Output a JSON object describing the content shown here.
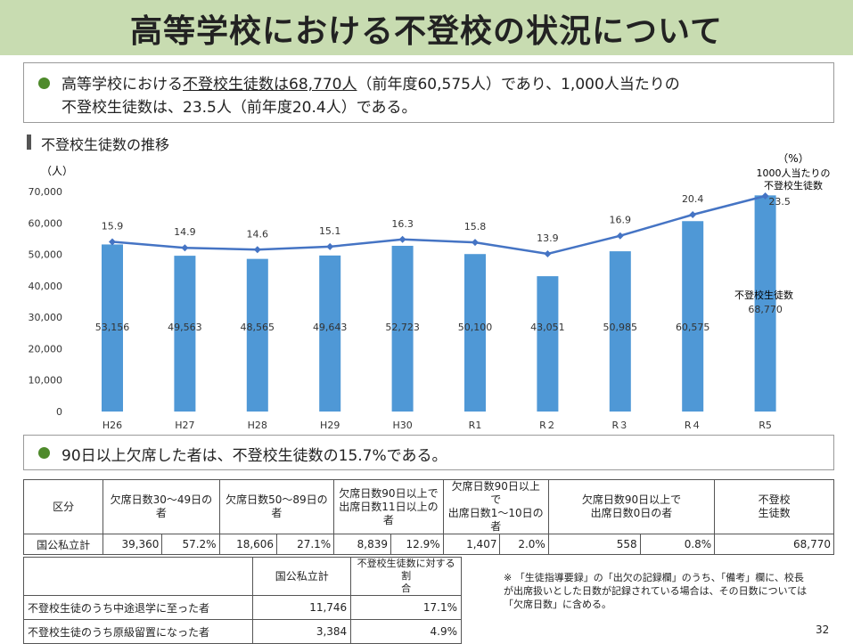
{
  "title": "高等学校における不登校の状況について",
  "summary1": {
    "line1_part1": "高等学校における",
    "line1_underlined": "不登校生徒数は68,770人",
    "line1_part2": "（前年度60,575人）であり、1,000人当たりの",
    "line2": "不登校生徒数は、23.5人（前年度20.4人）である。"
  },
  "section_title": "不登校生徒数の推移",
  "chart_data": {
    "type": "bar",
    "categories": [
      "H26",
      "H27",
      "H28",
      "H29",
      "H30",
      "R1",
      "R２",
      "R３",
      "R４",
      "R5"
    ],
    "series": [
      {
        "name": "不登校生徒数",
        "type": "bar",
        "axis": "left",
        "values": [
          53156,
          49563,
          48565,
          49643,
          52723,
          50100,
          43051,
          50985,
          60575,
          68770
        ],
        "labels": [
          "53,156",
          "49,563",
          "48,565",
          "49,643",
          "52,723",
          "50,100",
          "43,051",
          "50,985",
          "60,575",
          "68,770"
        ]
      },
      {
        "name": "1000人当たりの不登校生徒数",
        "type": "line",
        "axis": "right",
        "values": [
          15.9,
          14.9,
          14.6,
          15.1,
          16.3,
          15.8,
          13.9,
          16.9,
          20.4,
          23.5
        ],
        "labels": [
          "15.9",
          "14.9",
          "14.6",
          "15.1",
          "16.3",
          "15.8",
          "13.9",
          "16.9",
          "20.4",
          "23.5"
        ]
      }
    ],
    "ylabel_left": "（人）",
    "ylabel_right": "（%）",
    "ylim_left": [
      0,
      70000
    ],
    "yticks_left": [
      "0",
      "10,000",
      "20,000",
      "30,000",
      "40,000",
      "50,000",
      "60,000",
      "70,000"
    ],
    "line_annotation": [
      "1000人当たりの",
      "不登校生徒数"
    ],
    "bar_annotation": "不登校生徒数",
    "colors": {
      "bar": "#4f98d6",
      "line": "#4574c4"
    }
  },
  "summary2": "90日以上欠席した者は、不登校生徒数の15.7%である。",
  "table1": {
    "headers": [
      "区分",
      "欠席日数30～49日の者",
      "欠席日数50～89日の者",
      "欠席日数90日以上で\n出席日数11日以上の者",
      "欠席日数90日以上で\n出席日数1～10日の者",
      "欠席日数90日以上で\n出席日数0日の者",
      "不登校\n生徒数"
    ],
    "row_label": "国公私立計",
    "cells": [
      "39,360",
      "57.2%",
      "18,606",
      "27.1%",
      "8,839",
      "12.9%",
      "1,407",
      "2.0%",
      "558",
      "0.8%",
      "68,770"
    ]
  },
  "table2": {
    "headers": [
      "",
      "国公私立計",
      "不登校生徒数に対する割\n合"
    ],
    "rows": [
      {
        "label": "不登校生徒のうち中途退学に至った者",
        "value": "11,746",
        "pct": "17.1%"
      },
      {
        "label": "不登校生徒のうち原級留置になった者",
        "value": "3,384",
        "pct": "4.9%"
      }
    ]
  },
  "note": "※ 「生徒指導要録」の「出欠の記録欄」のうち、「備考」欄に、校長が出席扱いとした日数が記録されている場合は、その日数については「欠席日数」に含める。",
  "page_number": "32"
}
